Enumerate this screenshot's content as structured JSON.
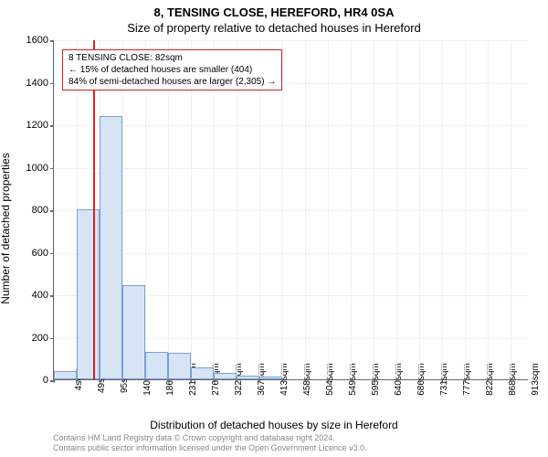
{
  "title_main": "8, TENSING CLOSE, HEREFORD, HR4 0SA",
  "title_sub": "Size of property relative to detached houses in Hereford",
  "y_axis_label": "Number of detached properties",
  "x_axis_label": "Distribution of detached houses by size in Hereford",
  "info_box": {
    "line1": "8 TENSING CLOSE: 82sqm",
    "line2": "← 15% of detached houses are smaller (404)",
    "line3": "84% of semi-detached houses are larger (2,305) →"
  },
  "attribution": {
    "line1": "Contains HM Land Registry data © Crown copyright and database right 2024.",
    "line2": "Contains public sector information licensed under the Open Government Licence v3.0."
  },
  "chart": {
    "type": "histogram",
    "ylim": [
      0,
      1600
    ],
    "ytick_step": 200,
    "xlim_min": 4,
    "xlim_max": 950,
    "bar_fill": "#d6e4f5",
    "bar_stroke": "#7a9fd6",
    "grid_color": "#f0f0f0",
    "marker_color": "#d62020",
    "marker_x": 82,
    "info_box_border": "#d62020",
    "background": "#ffffff",
    "x_ticks": [
      4,
      49,
      95,
      140,
      186,
      231,
      276,
      322,
      367,
      413,
      458,
      504,
      549,
      595,
      640,
      686,
      731,
      777,
      822,
      868,
      913
    ],
    "x_tick_unit": "sqm",
    "bars": [
      {
        "x": 4,
        "w": 45,
        "v": 40
      },
      {
        "x": 49,
        "w": 46,
        "v": 800
      },
      {
        "x": 95,
        "w": 45,
        "v": 1240
      },
      {
        "x": 140,
        "w": 46,
        "v": 445
      },
      {
        "x": 186,
        "w": 45,
        "v": 130
      },
      {
        "x": 231,
        "w": 45,
        "v": 125
      },
      {
        "x": 276,
        "w": 46,
        "v": 55
      },
      {
        "x": 322,
        "w": 45,
        "v": 30
      },
      {
        "x": 367,
        "w": 46,
        "v": 18
      },
      {
        "x": 413,
        "w": 45,
        "v": 12
      }
    ]
  }
}
